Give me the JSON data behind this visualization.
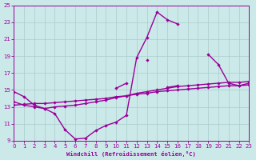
{
  "xlabel": "Windchill (Refroidissement éolien,°C)",
  "ylabel": "",
  "xlim": [
    0,
    23
  ],
  "ylim": [
    9,
    25
  ],
  "yticks": [
    9,
    11,
    13,
    15,
    17,
    19,
    21,
    23,
    25
  ],
  "xticks": [
    0,
    1,
    2,
    3,
    4,
    5,
    6,
    7,
    8,
    9,
    10,
    11,
    12,
    13,
    14,
    15,
    16,
    17,
    18,
    19,
    20,
    21,
    22,
    23
  ],
  "bg_color": "#cce9e9",
  "grid_color": "#aacccc",
  "line_color": "#990099",
  "line_width": 1.0,
  "marker_size": 2.2,
  "series1_x": [
    0,
    1,
    2,
    3,
    4,
    5,
    6,
    7,
    8,
    9,
    10,
    11,
    12,
    13,
    14,
    15,
    16,
    17,
    18,
    19,
    20,
    21,
    22,
    23
  ],
  "series1_y": [
    14.8,
    14.2,
    13.2,
    12.8,
    12.2,
    10.3,
    9.2,
    9.3,
    10.2,
    10.8,
    11.2,
    12.0,
    18.8,
    21.2,
    24.2,
    23.3,
    22.8,
    null,
    null,
    null,
    null,
    null,
    null,
    null
  ],
  "series2_x": [
    0,
    1,
    2,
    3,
    4,
    5,
    6,
    7,
    8,
    9,
    10,
    11,
    12,
    13,
    14,
    15,
    16,
    17,
    18,
    19,
    20,
    21,
    22,
    23
  ],
  "series2_y": [
    14.8,
    null,
    null,
    null,
    null,
    null,
    null,
    null,
    null,
    null,
    15.2,
    15.8,
    null,
    18.5,
    null,
    15.3,
    15.5,
    null,
    null,
    19.2,
    18.0,
    15.8,
    15.5,
    15.8
  ],
  "series3_x": [
    0,
    1,
    2,
    3,
    4,
    5,
    6,
    7,
    8,
    9,
    10,
    11,
    12,
    13,
    14,
    15,
    16,
    17,
    18,
    19,
    20,
    21,
    22,
    23
  ],
  "series3_y": [
    13.6,
    13.2,
    13.0,
    12.8,
    13.0,
    13.1,
    13.2,
    13.4,
    13.6,
    13.8,
    14.1,
    14.3,
    14.6,
    14.8,
    15.0,
    15.2,
    15.4,
    15.5,
    15.6,
    15.7,
    15.8,
    15.9,
    15.9,
    16.0
  ],
  "series4_x": [
    0,
    1,
    2,
    3,
    4,
    5,
    6,
    7,
    8,
    9,
    10,
    11,
    12,
    13,
    14,
    15,
    16,
    17,
    18,
    19,
    20,
    21,
    22,
    23
  ],
  "series4_y": [
    13.2,
    13.3,
    13.4,
    13.4,
    13.5,
    13.6,
    13.7,
    13.8,
    13.9,
    14.0,
    14.2,
    14.3,
    14.5,
    14.6,
    14.8,
    14.9,
    15.0,
    15.1,
    15.2,
    15.3,
    15.4,
    15.5,
    15.5,
    15.6
  ]
}
